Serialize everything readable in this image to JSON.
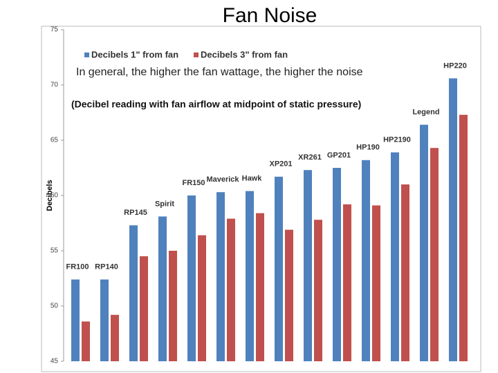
{
  "chart_data": {
    "type": "bar",
    "title": "Fan Noise",
    "y_label": "Decibels",
    "annotations": [
      "In general, the higher the fan wattage, the higher the noise",
      "(Decibel reading with fan airflow at midpoint of static pressure)"
    ],
    "categories": [
      "FR100",
      "RP140",
      "RP145",
      "Spirit",
      "FR150",
      "Maverick",
      "Hawk",
      "XP201",
      "XR261",
      "GP201",
      "HP190",
      "HP2190",
      "Legend",
      "HP220"
    ],
    "series": [
      {
        "name": "Decibels 1\" from fan",
        "color": "#4f81bd",
        "values": [
          52.4,
          52.4,
          57.3,
          58.1,
          60.0,
          60.3,
          60.4,
          61.7,
          62.3,
          62.5,
          63.2,
          63.9,
          66.4,
          70.6
        ]
      },
      {
        "name": "Decibels 3\" from fan",
        "color": "#c0504d",
        "values": [
          48.6,
          49.2,
          54.5,
          55.0,
          56.4,
          57.9,
          58.4,
          56.9,
          57.8,
          59.2,
          59.1,
          61.0,
          64.3,
          67.3
        ]
      }
    ],
    "ylim": [
      45,
      75
    ],
    "yticks": [
      45,
      50,
      55,
      60,
      65,
      70,
      75
    ],
    "grid": false,
    "legend": "top"
  }
}
